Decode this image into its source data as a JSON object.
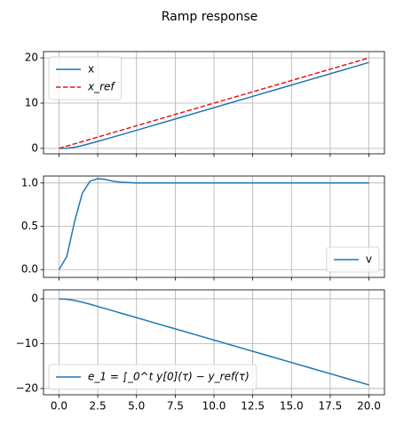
{
  "title": "Ramp response",
  "chart_data": [
    {
      "type": "line",
      "x": [
        0,
        0.5,
        1,
        1.5,
        2,
        2.5,
        3,
        3.5,
        4,
        5,
        6,
        7,
        8,
        9,
        10,
        11,
        12,
        13,
        14,
        15,
        16,
        17,
        18,
        19,
        20
      ],
      "series": [
        {
          "name": "x",
          "color": "#1f77b4",
          "dash": false,
          "values": [
            0,
            0.04,
            0.25,
            0.62,
            1.08,
            1.55,
            2.03,
            2.52,
            3.01,
            4,
            5,
            6,
            7,
            8,
            9,
            10,
            11,
            12,
            13,
            14,
            15,
            16,
            17,
            18,
            19
          ]
        },
        {
          "name": "x_ref",
          "color": "#e41a1c",
          "dash": true,
          "values": [
            0,
            0.5,
            1,
            1.5,
            2,
            2.5,
            3,
            3.5,
            4,
            5,
            6,
            7,
            8,
            9,
            10,
            11,
            12,
            13,
            14,
            15,
            16,
            17,
            18,
            19,
            20
          ]
        }
      ],
      "xlim": [
        -1,
        21
      ],
      "ylim": [
        -1.2,
        21.4
      ],
      "xticks": [
        0,
        2.5,
        5,
        7.5,
        10,
        12.5,
        15,
        17.5,
        20
      ],
      "yticks": [
        0,
        10,
        20
      ],
      "grid": true,
      "legend": "upper left"
    },
    {
      "type": "line",
      "x": [
        0,
        0.5,
        1,
        1.5,
        2,
        2.5,
        3,
        3.5,
        4,
        5,
        6,
        7,
        8,
        9,
        10,
        11,
        12,
        13,
        14,
        15,
        16,
        17,
        18,
        19,
        20
      ],
      "series": [
        {
          "name": "v",
          "color": "#1f77b4",
          "dash": false,
          "values": [
            0,
            0.15,
            0.55,
            0.88,
            1.02,
            1.05,
            1.04,
            1.02,
            1.01,
            1,
            1,
            1,
            1,
            1,
            1,
            1,
            1,
            1,
            1,
            1,
            1,
            1,
            1,
            1,
            1
          ]
        }
      ],
      "xlim": [
        -1,
        21
      ],
      "ylim": [
        -0.09,
        1.08
      ],
      "xticks": [
        0,
        2.5,
        5,
        7.5,
        10,
        12.5,
        15,
        17.5,
        20
      ],
      "yticks": [
        {
          "value": 0,
          "label": "0.0"
        },
        {
          "value": 0.5,
          "label": "0.5"
        },
        {
          "value": 1,
          "label": "1.0"
        }
      ],
      "grid": true,
      "legend": "lower right"
    },
    {
      "type": "line",
      "x": [
        0,
        0.5,
        1,
        1.5,
        2,
        2.5,
        3,
        3.5,
        4,
        5,
        6,
        7,
        8,
        9,
        10,
        11,
        12,
        13,
        14,
        15,
        16,
        17,
        18,
        19,
        20
      ],
      "series": [
        {
          "name": "e_1 = ∫_0^t y[0](τ) − y_ref(τ)",
          "color": "#1f77b4",
          "dash": false,
          "values": [
            0,
            -0.1,
            -0.35,
            -0.75,
            -1.2,
            -1.7,
            -2.2,
            -2.7,
            -3.2,
            -4.2,
            -5.2,
            -6.2,
            -7.2,
            -8.2,
            -9.2,
            -10.2,
            -11.2,
            -12.2,
            -13.2,
            -14.2,
            -15.2,
            -16.2,
            -17.2,
            -18.2,
            -19.2
          ]
        }
      ],
      "xlim": [
        -1,
        21
      ],
      "ylim": [
        -21.4,
        2.0
      ],
      "xticks": [
        {
          "value": 0,
          "label": "0.0"
        },
        {
          "value": 2.5,
          "label": "2.5"
        },
        {
          "value": 5,
          "label": "5.0"
        },
        {
          "value": 7.5,
          "label": "7.5"
        },
        {
          "value": 10,
          "label": "10.0"
        },
        {
          "value": 12.5,
          "label": "12.5"
        },
        {
          "value": 15,
          "label": "15.0"
        },
        {
          "value": 17.5,
          "label": "17.5"
        },
        {
          "value": 20,
          "label": "20.0"
        }
      ],
      "yticks": [
        {
          "value": 0,
          "label": "0"
        },
        {
          "value": -10,
          "label": "−10"
        },
        {
          "value": -20,
          "label": "−20"
        }
      ],
      "grid": true,
      "legend": "lower left"
    }
  ]
}
